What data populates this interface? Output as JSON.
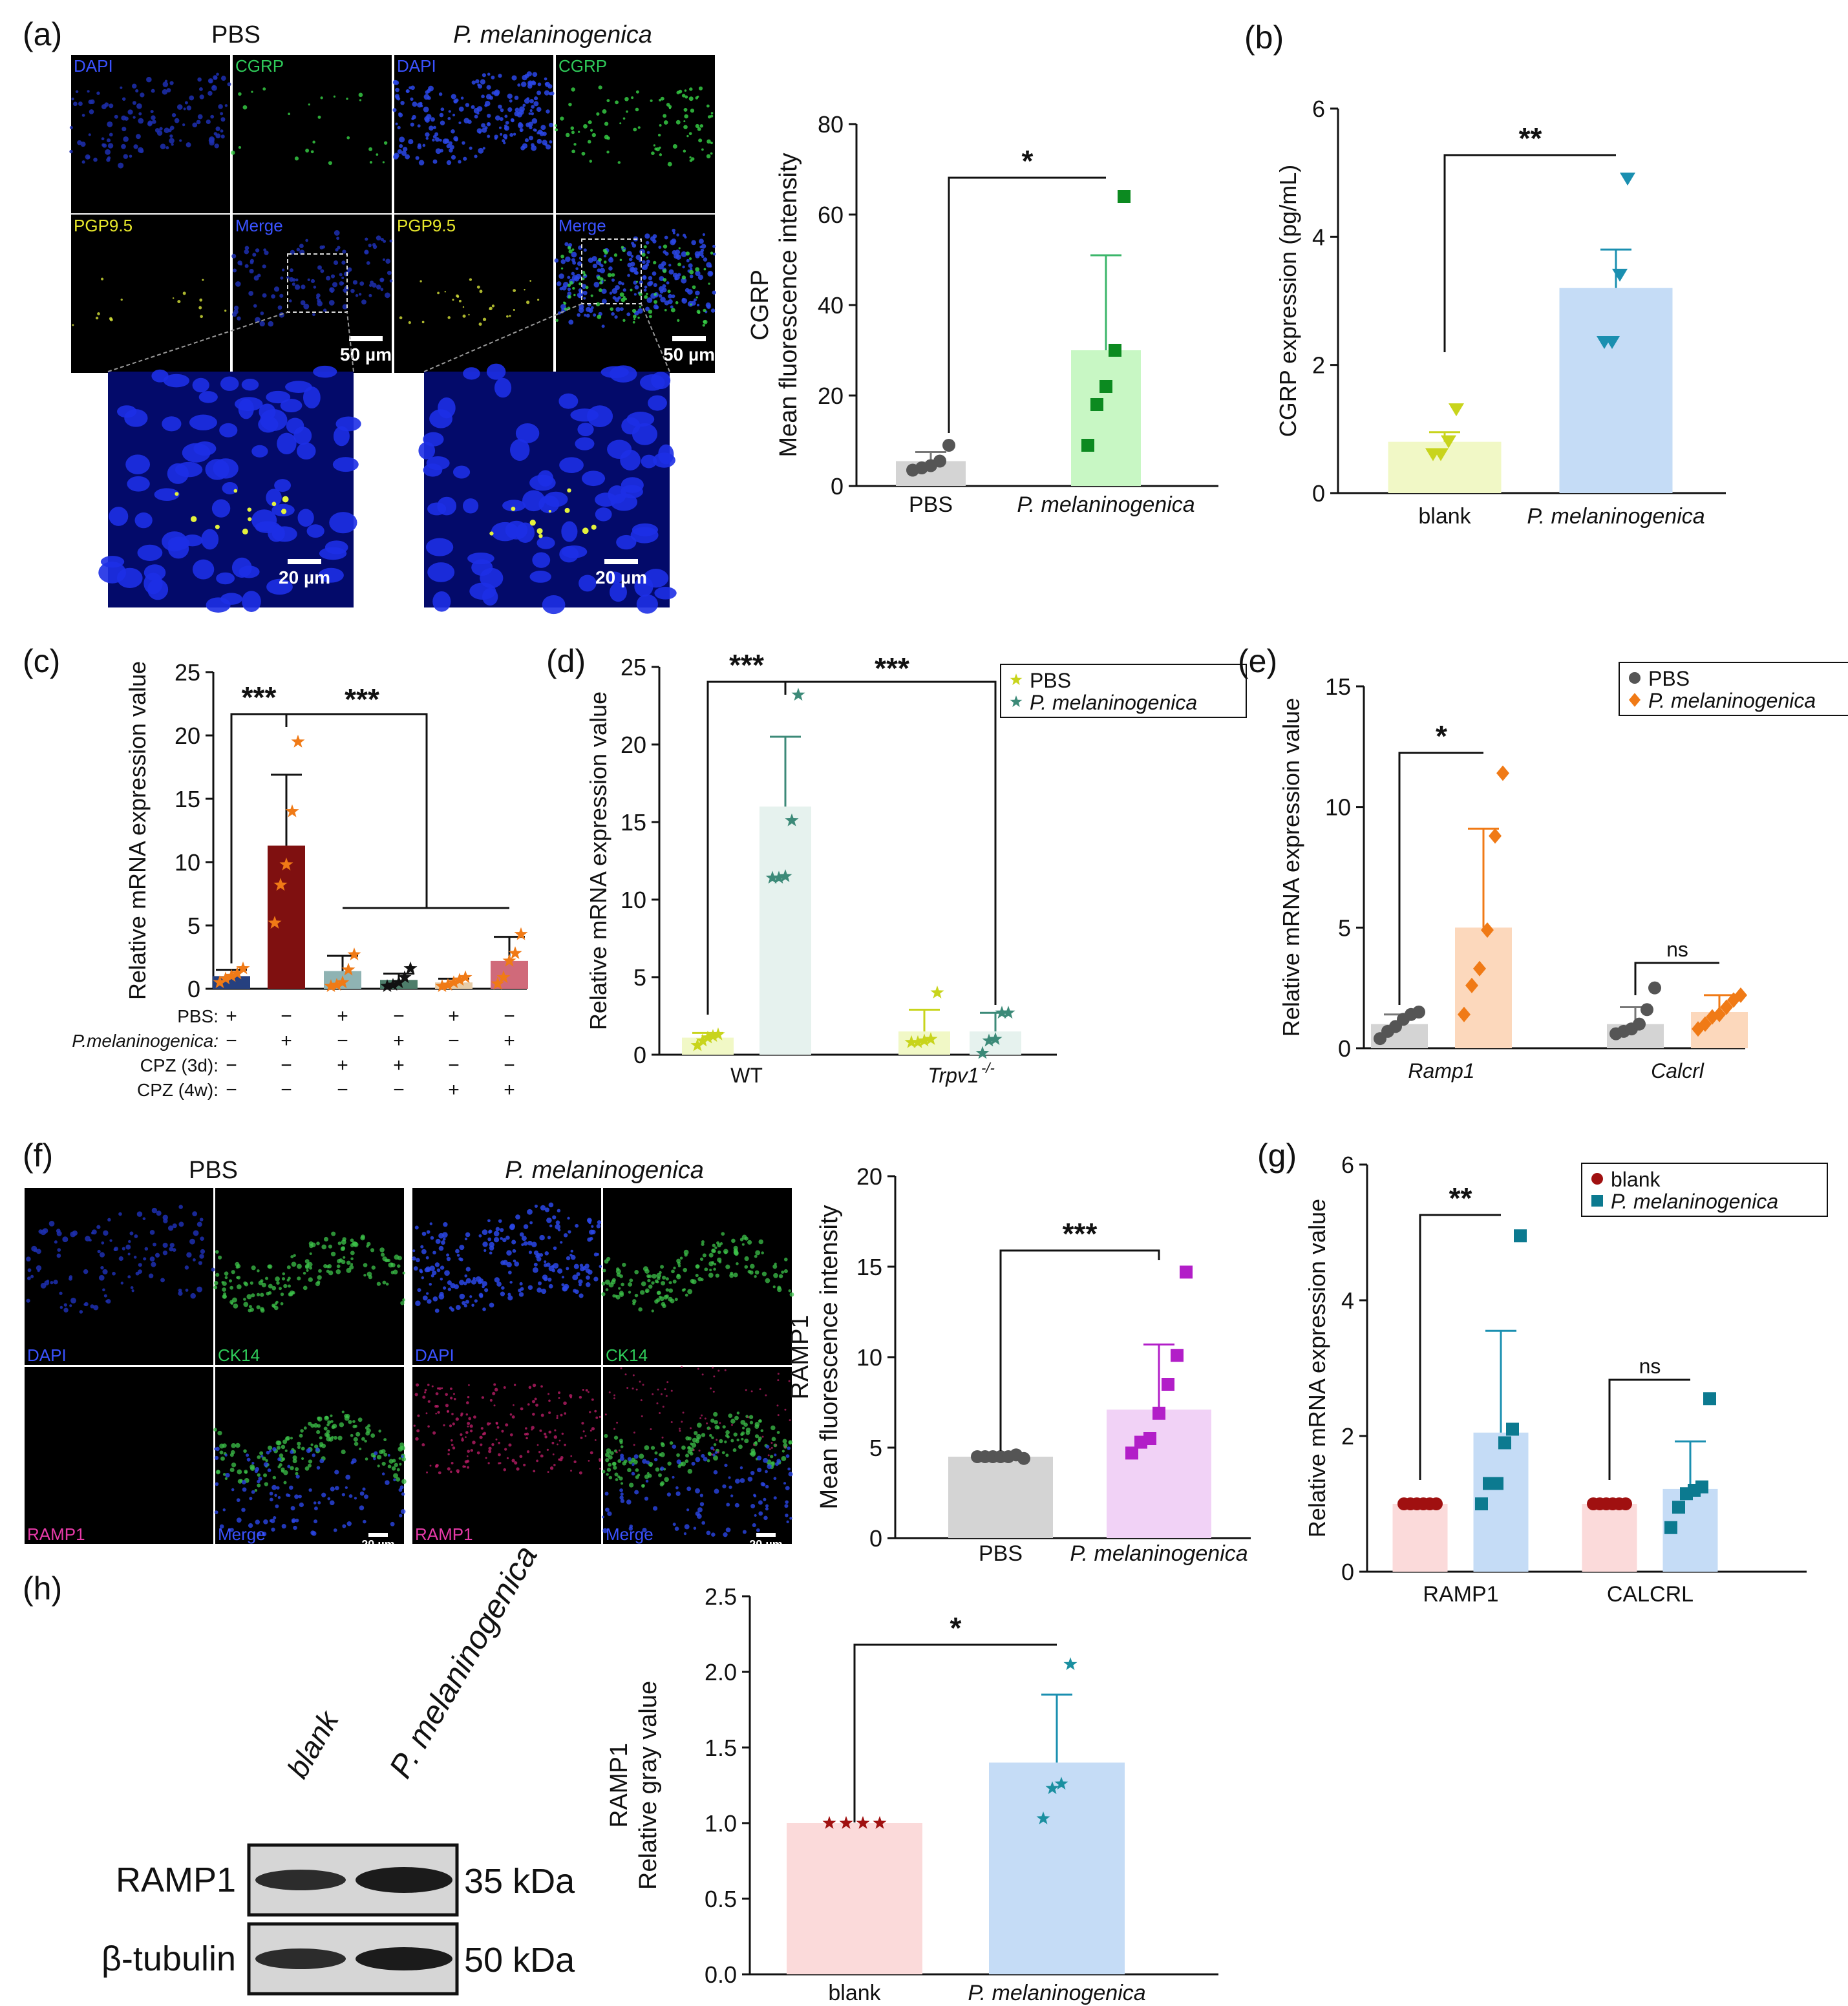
{
  "panel_labels": [
    "(a)",
    "(b)",
    "(c)",
    "(d)",
    "(e)",
    "(f)",
    "(g)",
    "(h)"
  ],
  "a": {
    "title_left": "PBS",
    "title_right": "P. melaninogenica",
    "channel_labels": [
      "DAPI",
      "CGRP",
      "PGP9.5",
      "Merge"
    ],
    "scale_small": "50 µm",
    "scale_zoom": "20 µm"
  },
  "f": {
    "title_left": "PBS",
    "title_right": "P. melaninogenica",
    "channel_labels": [
      "DAPI",
      "CK14",
      "RAMP1",
      "Merge"
    ],
    "scale": "20 µm"
  },
  "h_blot": {
    "lane_labels": [
      "blank",
      "P. melaninogenica"
    ],
    "rows": [
      {
        "protein": "RAMP1",
        "size": "35 kDa"
      },
      {
        "protein": "β-tubulin",
        "size": "50 kDa"
      }
    ]
  },
  "colors": {
    "gray_bar": "#d4d4d4",
    "gray_dot": "#555555",
    "green_bar": "#c8f7c4",
    "green_dot": "#0c8a20",
    "yellow_bar": "#f1f8c6",
    "yellow_dot": "#c8d41c",
    "blue_bar": "#c5dcf6",
    "teal_dot": "#1a8fb0",
    "orange_bar": "#fcd8bc",
    "orange_dot": "#f07a16",
    "purple_bar": "#f1d2f6",
    "purple_dot": "#b21ec8",
    "pink_bar": "#fbdada",
    "red_dot": "#a01010"
  },
  "chart_data": [
    {
      "panel": "a",
      "type": "bar",
      "ylabel_lines": [
        "CGRP",
        "Mean fluorescence intensity"
      ],
      "ylim": [
        0,
        80
      ],
      "yticks": [
        "0",
        "20",
        "40",
        "60",
        "80"
      ],
      "categories": [
        "PBS",
        "P. melaninogenica"
      ],
      "means": [
        5.5,
        30
      ],
      "errors": [
        2,
        21
      ],
      "points": [
        [
          3.5,
          4,
          4.5,
          5.5,
          9
        ],
        [
          9,
          18,
          22,
          30,
          64
        ]
      ],
      "significance": [
        {
          "label": "*",
          "between": [
            "PBS",
            "P. melaninogenica"
          ]
        }
      ]
    },
    {
      "panel": "b",
      "type": "bar",
      "ylabel": "CGRP expression (pg/mL)",
      "ylim": [
        0,
        6
      ],
      "yticks": [
        "0",
        "2",
        "4",
        "6"
      ],
      "categories": [
        "blank",
        "P. melaninogenica"
      ],
      "means": [
        0.8,
        3.2
      ],
      "errors": [
        0.15,
        0.6
      ],
      "points": [
        [
          0.6,
          0.6,
          0.8,
          1.3
        ],
        [
          2.35,
          2.35,
          3.4,
          4.9
        ]
      ],
      "significance": [
        {
          "label": "**",
          "between": [
            "blank",
            "P. melaninogenica"
          ]
        }
      ]
    },
    {
      "panel": "c",
      "type": "bar",
      "ylabel": "Relative mRNA expression value",
      "ylim": [
        0,
        25
      ],
      "yticks": [
        "0",
        "5",
        "10",
        "15",
        "20",
        "25"
      ],
      "means": [
        1.0,
        11.3,
        1.4,
        0.7,
        0.5,
        2.2
      ],
      "errors": [
        0.5,
        5.6,
        1.2,
        0.5,
        0.3,
        1.9
      ],
      "points": [
        [
          0.5,
          0.8,
          1.0,
          1.2,
          1.6
        ],
        [
          5.2,
          8.2,
          9.8,
          14,
          19.5
        ],
        [
          0.2,
          0.3,
          0.5,
          1.5,
          2.7
        ],
        [
          0.2,
          0.3,
          0.5,
          0.9,
          1.6
        ],
        [
          0.2,
          0.3,
          0.5,
          0.7,
          0.9
        ],
        [
          0.4,
          0.9,
          2.2,
          2.8,
          4.3
        ]
      ],
      "condition_rows": [
        {
          "label": "PBS:",
          "italic": false,
          "values": [
            "+",
            "−",
            "+",
            "−",
            "+",
            "−"
          ]
        },
        {
          "label": "P.melaninogenica:",
          "italic": true,
          "values": [
            "−",
            "+",
            "−",
            "+",
            "−",
            "+"
          ]
        },
        {
          "label": "CPZ (3d):",
          "italic": false,
          "values": [
            "−",
            "−",
            "+",
            "+",
            "−",
            "−"
          ]
        },
        {
          "label": "CPZ (4w):",
          "italic": false,
          "values": [
            "−",
            "−",
            "−",
            "−",
            "+",
            "+"
          ]
        }
      ],
      "significance": [
        {
          "label": "***",
          "between": [
            1,
            2
          ]
        },
        {
          "label": "***",
          "between": [
            2,
            "3-6"
          ]
        }
      ]
    },
    {
      "panel": "d",
      "type": "bar",
      "ylabel": "Relative mRNA expression value",
      "ylim": [
        0,
        25
      ],
      "yticks": [
        "0",
        "5",
        "10",
        "15",
        "20",
        "25"
      ],
      "groups": [
        "WT",
        "Trpv1"
      ],
      "group_superscript": "-/-",
      "legend": [
        "PBS",
        "P. melaninogenica"
      ],
      "means": [
        [
          1.1,
          16
        ],
        [
          1.5,
          1.5
        ]
      ],
      "errors": [
        [
          0.3,
          4.5
        ],
        [
          1.4,
          1.2
        ]
      ],
      "points": [
        [
          [
            0.6,
            0.9,
            1.1,
            1.2,
            1.3
          ],
          [
            11.4,
            11.4,
            11.5,
            15.1,
            23.2
          ]
        ],
        [
          [
            0.8,
            0.8,
            0.9,
            1.0,
            4.0
          ],
          [
            0.1,
            0.9,
            1.0,
            2.7,
            2.7
          ]
        ]
      ],
      "significance": [
        {
          "label": "***",
          "between": [
            "WT PBS",
            "WT P. melaninogenica"
          ]
        },
        {
          "label": "***",
          "between": [
            "WT P. melaninogenica",
            "Trpv1 P. melaninogenica"
          ]
        }
      ]
    },
    {
      "panel": "e",
      "type": "bar",
      "ylabel": "Relative mRNA expression value",
      "ylim": [
        0,
        15
      ],
      "yticks": [
        "0",
        "5",
        "10",
        "15"
      ],
      "groups": [
        "Ramp1",
        "Calcrl"
      ],
      "legend": [
        "PBS",
        "P. melaninogenica"
      ],
      "means": [
        [
          1.0,
          5.0
        ],
        [
          1.0,
          1.5
        ]
      ],
      "errors": [
        [
          0.4,
          4.1
        ],
        [
          0.7,
          0.7
        ]
      ],
      "points": [
        [
          [
            0.4,
            0.7,
            0.9,
            1.2,
            1.4,
            1.5
          ],
          [
            1.4,
            2.6,
            3.3,
            4.9,
            8.8,
            11.4
          ]
        ],
        [
          [
            0.6,
            0.7,
            0.8,
            1.0,
            1.6,
            2.5
          ],
          [
            0.8,
            1.0,
            1.3,
            1.4,
            1.7,
            2.0,
            2.2
          ]
        ]
      ],
      "significance": [
        {
          "label": "*",
          "between": [
            "Ramp1 PBS",
            "Ramp1 P. melaninogenica"
          ]
        },
        {
          "label": "ns",
          "between": [
            "Calcrl PBS",
            "Calcrl P. melaninogenica"
          ]
        }
      ]
    },
    {
      "panel": "f",
      "type": "bar",
      "ylabel_lines": [
        "RAMP1",
        "Mean fluorescence intensity"
      ],
      "ylim": [
        0,
        20
      ],
      "yticks": [
        "0",
        "5",
        "10",
        "15",
        "20"
      ],
      "categories": [
        "PBS",
        "P. melaninogenica"
      ],
      "means": [
        4.5,
        7.1
      ],
      "errors": [
        0.05,
        3.6
      ],
      "points": [
        [
          4.5,
          4.5,
          4.5,
          4.5,
          4.5,
          4.6,
          4.4
        ],
        [
          4.7,
          5.3,
          5.5,
          6.9,
          8.5,
          10.1,
          14.7
        ]
      ],
      "significance": [
        {
          "label": "***",
          "between": [
            "PBS",
            "P. melaninogenica"
          ]
        }
      ]
    },
    {
      "panel": "g",
      "type": "bar",
      "ylabel": "Relative mRNA expression value",
      "ylim": [
        0,
        6
      ],
      "yticks": [
        "0",
        "2",
        "4",
        "6"
      ],
      "groups": [
        "RAMP1",
        "CALCRL"
      ],
      "legend": [
        "blank",
        "P. melaninogenica"
      ],
      "means": [
        [
          1.0,
          2.05
        ],
        [
          1.0,
          1.22
        ]
      ],
      "errors": [
        [
          0,
          1.5
        ],
        [
          0,
          0.7
        ]
      ],
      "points": [
        [
          [
            1,
            1,
            1,
            1,
            1,
            1
          ],
          [
            1.0,
            1.3,
            1.3,
            1.9,
            2.1,
            4.95
          ]
        ],
        [
          [
            1,
            1,
            1,
            1,
            1,
            1
          ],
          [
            0.65,
            0.95,
            1.15,
            1.2,
            1.25,
            2.55
          ]
        ]
      ],
      "significance": [
        {
          "label": "**",
          "between": [
            "RAMP1 blank",
            "RAMP1 P. melaninogenica"
          ]
        },
        {
          "label": "ns",
          "between": [
            "CALCRL blank",
            "CALCRL P. melaninogenica"
          ]
        }
      ]
    },
    {
      "panel": "h",
      "type": "bar",
      "ylabel_lines": [
        "RAMP1",
        "Relative gray value"
      ],
      "ylim": [
        0,
        2.5
      ],
      "yticks": [
        "0.0",
        "0.5",
        "1.0",
        "1.5",
        "2.0",
        "2.5"
      ],
      "categories": [
        "blank",
        "P. melaninogenica"
      ],
      "means": [
        1.0,
        1.4
      ],
      "errors": [
        0,
        0.45
      ],
      "points": [
        [
          1,
          1,
          1,
          1
        ],
        [
          1.03,
          1.23,
          1.26,
          2.05
        ]
      ],
      "significance": [
        {
          "label": "*",
          "between": [
            "blank",
            "P. melaninogenica"
          ]
        }
      ]
    }
  ]
}
